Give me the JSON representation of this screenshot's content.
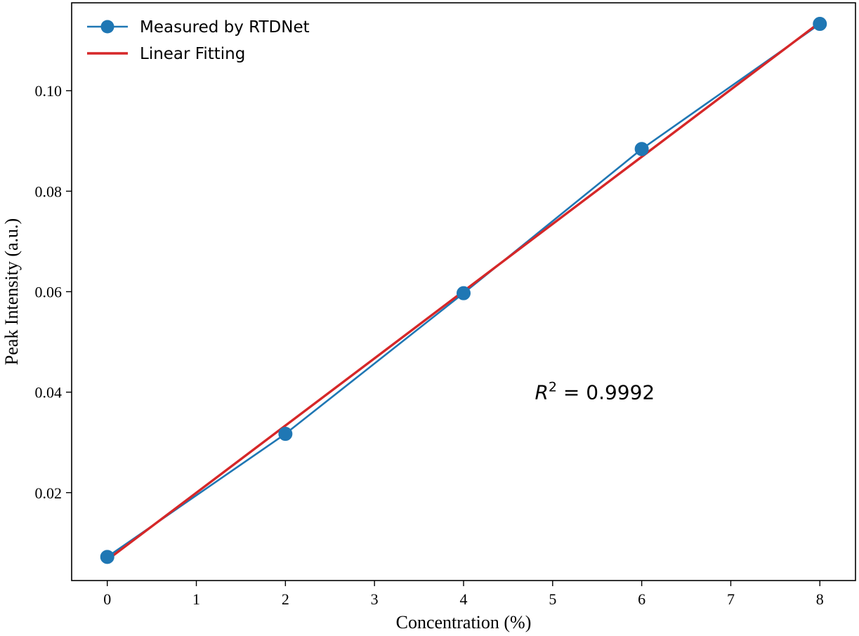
{
  "chart_data": {
    "type": "line",
    "xlabel": "Concentration (%)",
    "ylabel": "Peak Intensity (a.u.)",
    "xlim": [
      -0.4,
      8.4
    ],
    "ylim": [
      0.0025,
      0.1175
    ],
    "x_ticks": [
      0,
      1,
      2,
      3,
      4,
      5,
      6,
      7,
      8
    ],
    "x_tick_labels": [
      "0",
      "1",
      "2",
      "3",
      "4",
      "5",
      "6",
      "7",
      "8"
    ],
    "y_ticks": [
      0.02,
      0.04,
      0.06,
      0.08,
      0.1
    ],
    "y_tick_labels": [
      "0.02",
      "0.04",
      "0.06",
      "0.08",
      "0.10"
    ],
    "grid": false,
    "legend_position": "upper-left",
    "series": [
      {
        "name": "Measured by RTDNet",
        "kind": "line-with-markers",
        "color": "#1f77b4",
        "x": [
          0,
          2,
          4,
          6,
          8
        ],
        "y": [
          0.0072,
          0.0317,
          0.0597,
          0.0884,
          0.1133
        ]
      },
      {
        "name": "Linear Fitting",
        "kind": "line",
        "color": "#d62728",
        "x": [
          0,
          8
        ],
        "y": [
          0.0066,
          0.1136
        ]
      }
    ],
    "annotation": {
      "prefix": "R",
      "superscript": "2",
      "suffix": " = 0.9992",
      "x": 4.8,
      "y": 0.04
    }
  }
}
